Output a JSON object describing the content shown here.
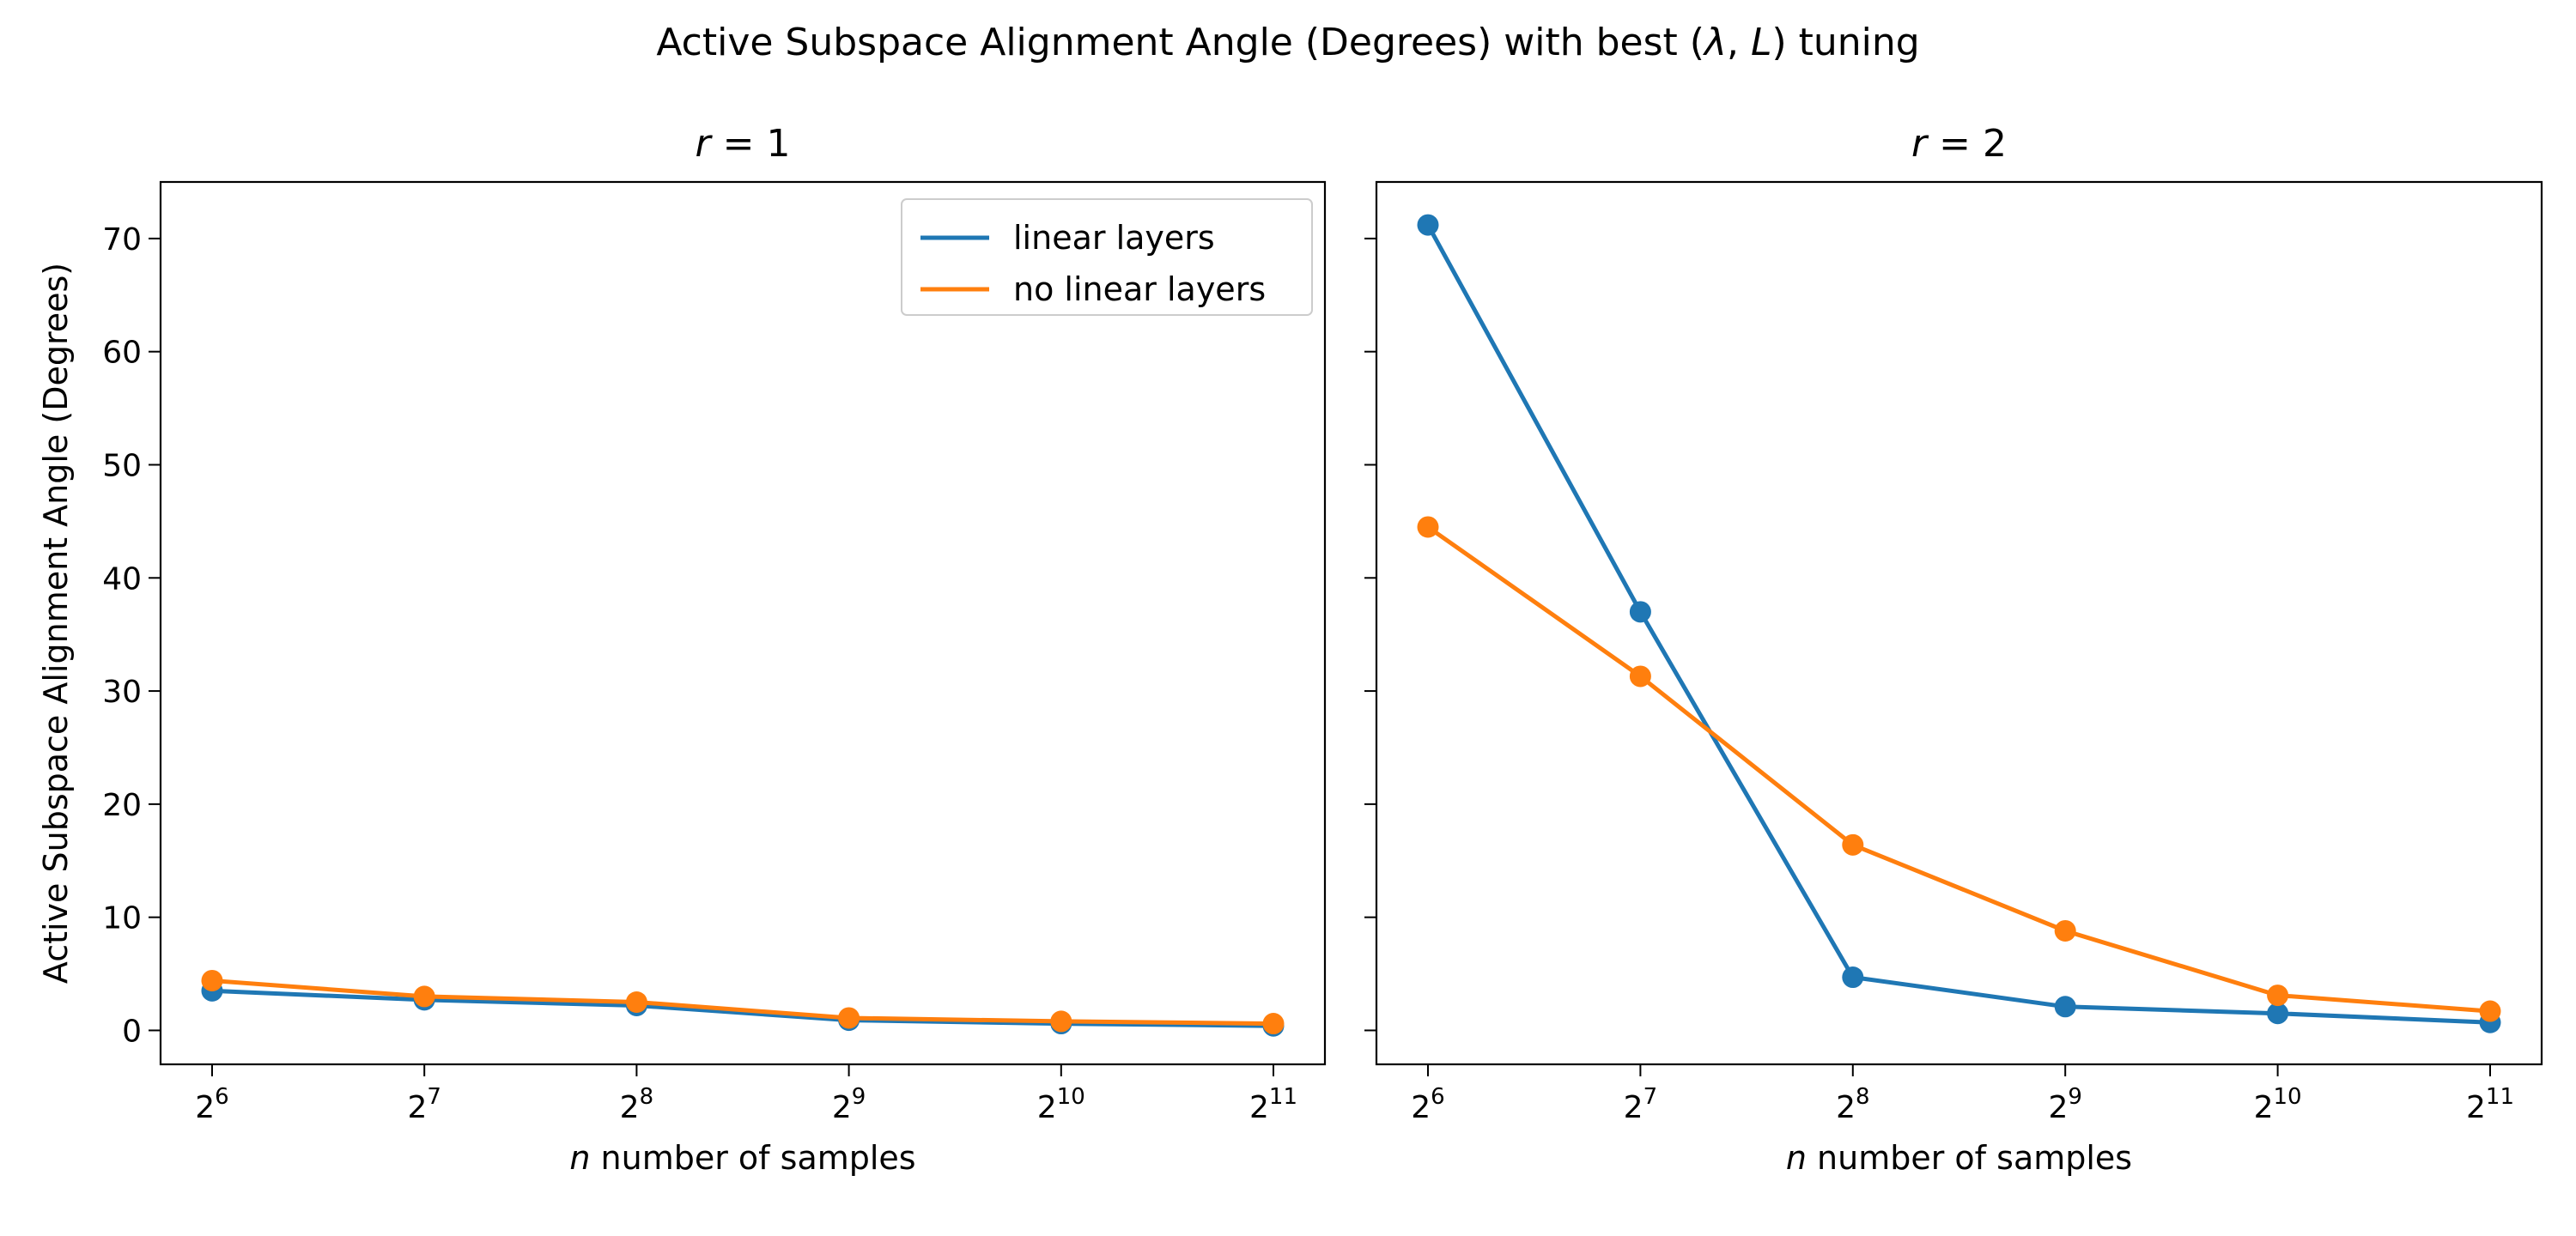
{
  "figure": {
    "suptitle": "Active Subspace Alignment Angle (Degrees) with best (λ, L) tuning"
  },
  "chart_data": [
    {
      "type": "line",
      "title": "r = 1",
      "xlabel": "n number of samples",
      "ylabel": "Active Subspace Alignment Angle (Degrees)",
      "x_scale": "log2",
      "x": [
        64,
        128,
        256,
        512,
        1024,
        2048
      ],
      "x_tick_labels": [
        {
          "base": "2",
          "exp": "6"
        },
        {
          "base": "2",
          "exp": "7"
        },
        {
          "base": "2",
          "exp": "8"
        },
        {
          "base": "2",
          "exp": "9"
        },
        {
          "base": "2",
          "exp": "10"
        },
        {
          "base": "2",
          "exp": "11"
        }
      ],
      "ylim": [
        -3,
        75
      ],
      "yticks": [
        0,
        10,
        20,
        30,
        40,
        50,
        60,
        70
      ],
      "grid": false,
      "legend": "upper right",
      "series": [
        {
          "name": "linear layers",
          "color": "#1f77b4",
          "values": [
            3.5,
            2.7,
            2.2,
            0.9,
            0.6,
            0.4
          ]
        },
        {
          "name": "no linear layers",
          "color": "#ff7f0e",
          "values": [
            4.4,
            3.0,
            2.5,
            1.1,
            0.8,
            0.6
          ]
        }
      ]
    },
    {
      "type": "line",
      "title": "r = 2",
      "xlabel": "n number of samples",
      "x_scale": "log2",
      "x": [
        64,
        128,
        256,
        512,
        1024,
        2048
      ],
      "x_tick_labels": [
        {
          "base": "2",
          "exp": "6"
        },
        {
          "base": "2",
          "exp": "7"
        },
        {
          "base": "2",
          "exp": "8"
        },
        {
          "base": "2",
          "exp": "9"
        },
        {
          "base": "2",
          "exp": "10"
        },
        {
          "base": "2",
          "exp": "11"
        }
      ],
      "ylim": [
        -3,
        75
      ],
      "yticks": [
        0,
        10,
        20,
        30,
        40,
        50,
        60,
        70
      ],
      "shared_y": true,
      "grid": false,
      "series": [
        {
          "name": "linear layers",
          "color": "#1f77b4",
          "values": [
            71.2,
            37.0,
            4.7,
            2.1,
            1.5,
            0.7
          ]
        },
        {
          "name": "no linear layers",
          "color": "#ff7f0e",
          "values": [
            44.5,
            31.3,
            16.4,
            8.8,
            3.1,
            1.7
          ]
        }
      ]
    }
  ]
}
